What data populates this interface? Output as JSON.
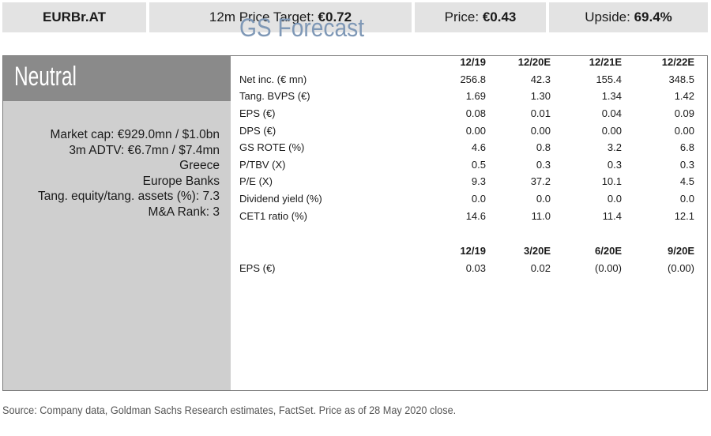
{
  "header": {
    "ticker": "EURBr.AT",
    "price_target_label": "12m Price Target: ",
    "price_target_value": "€0.72",
    "price_label": "Price: ",
    "price_value": "€0.43",
    "upside_label": "Upside: ",
    "upside_value": "69.4%"
  },
  "rating": "Neutral",
  "meta": [
    "Market cap: €929.0mn / $1.0bn",
    "3m ADTV: €6.7mn / $7.4mn",
    "Greece",
    "Europe Banks",
    "Tang. equity/tang. assets (%): 7.3",
    "M&A Rank: 3"
  ],
  "forecast_title": "GS Forecast",
  "annual": {
    "columns": [
      "12/19",
      "12/20E",
      "12/21E",
      "12/22E"
    ],
    "rows": [
      {
        "label": "Net inc. (€ mn)",
        "values": [
          "256.8",
          "42.3",
          "155.4",
          "348.5"
        ]
      },
      {
        "label": "Tang. BVPS (€)",
        "values": [
          "1.69",
          "1.30",
          "1.34",
          "1.42"
        ]
      },
      {
        "label": "EPS (€)",
        "values": [
          "0.08",
          "0.01",
          "0.04",
          "0.09"
        ]
      },
      {
        "label": "DPS (€)",
        "values": [
          "0.00",
          "0.00",
          "0.00",
          "0.00"
        ]
      },
      {
        "label": "GS ROTE (%)",
        "values": [
          "4.6",
          "0.8",
          "3.2",
          "6.8"
        ]
      },
      {
        "label": "P/TBV (X)",
        "values": [
          "0.5",
          "0.3",
          "0.3",
          "0.3"
        ]
      },
      {
        "label": "P/E (X)",
        "values": [
          "9.3",
          "37.2",
          "10.1",
          "4.5"
        ]
      },
      {
        "label": "Dividend yield (%)",
        "values": [
          "0.0",
          "0.0",
          "0.0",
          "0.0"
        ]
      },
      {
        "label": "CET1 ratio (%)",
        "values": [
          "14.6",
          "11.0",
          "11.4",
          "12.1"
        ]
      }
    ]
  },
  "quarterly": {
    "columns": [
      "12/19",
      "3/20E",
      "6/20E",
      "9/20E"
    ],
    "rows": [
      {
        "label": "EPS (€)",
        "values": [
          "0.03",
          "0.02",
          "(0.00)",
          "(0.00)"
        ]
      }
    ]
  },
  "source": "Source: Company data, Goldman Sachs Research estimates, FactSet. Price as of 28 May 2020 close."
}
